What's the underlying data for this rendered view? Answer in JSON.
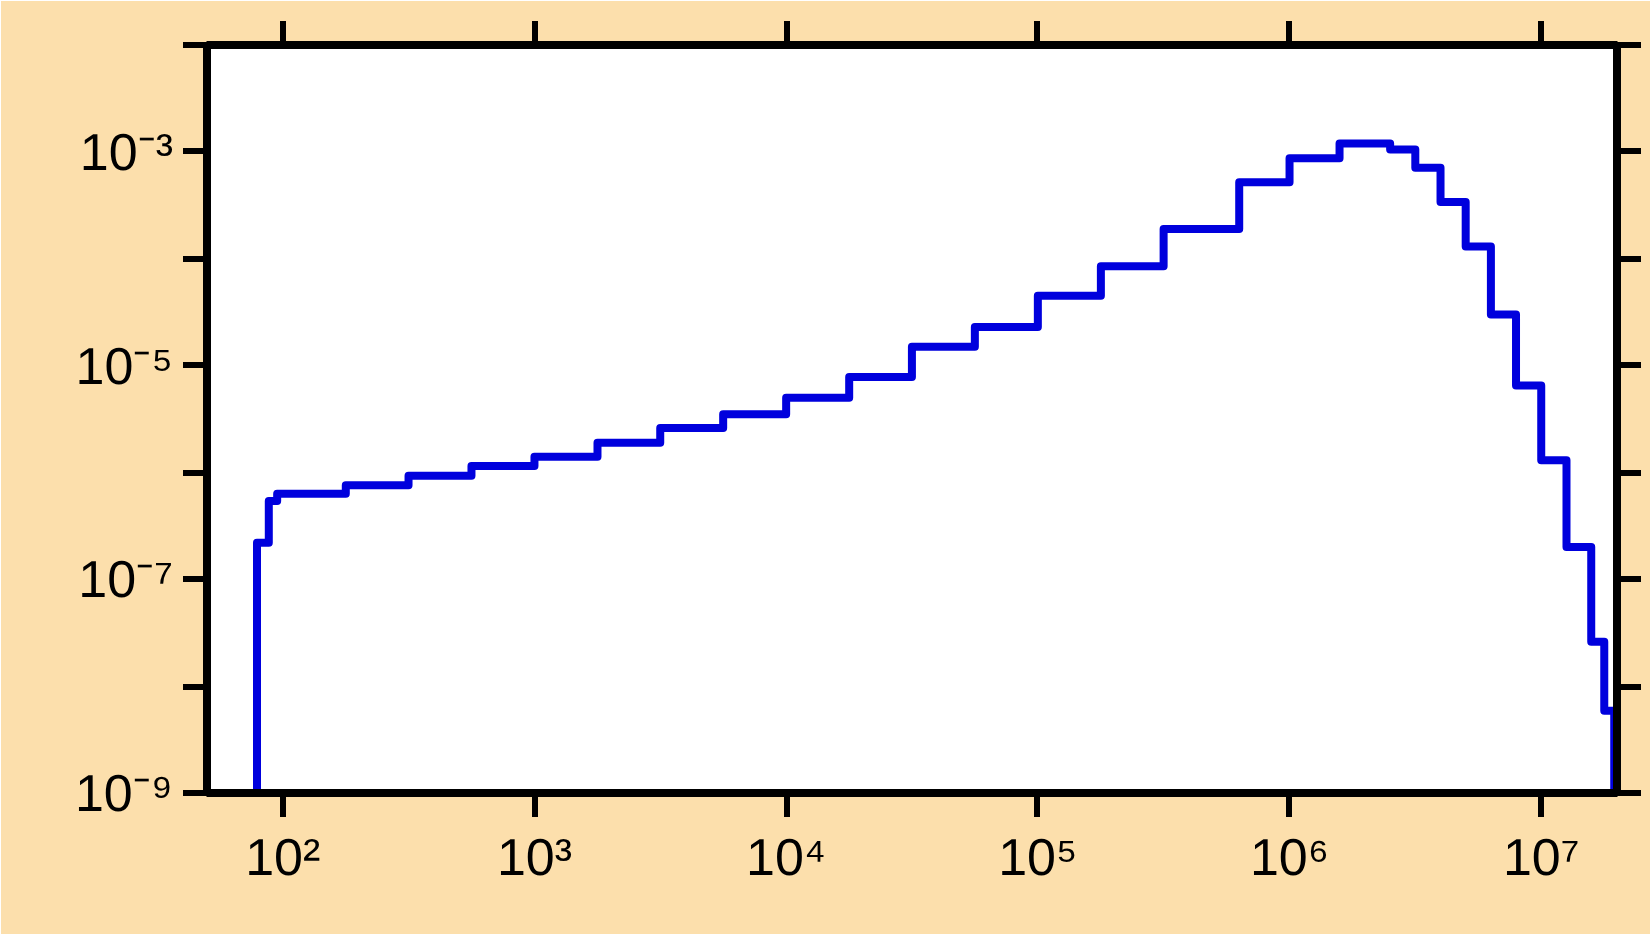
{
  "chart_data": {
    "type": "step",
    "x": [
      79,
      79,
      88,
      95,
      178,
      316,
      562,
      1000,
      1780,
      3160,
      5620,
      10000,
      17800,
      31600,
      56200,
      100000,
      178000,
      316000,
      631000,
      1000000,
      1580000,
      2000000,
      2510000,
      3160000,
      3980000,
      5010000,
      6310000,
      7940000,
      10000000,
      12600000,
      15800000,
      17800000,
      19500000
    ],
    "series": [
      {
        "color": "#0000dd",
        "values": [
          1e-09,
          2.2e-07,
          5.4e-07,
          6.3e-07,
          7.6e-07,
          9.3e-07,
          1.15e-06,
          1.4e-06,
          1.9e-06,
          2.6e-06,
          3.5e-06,
          5e-06,
          7.8e-06,
          1.5e-05,
          2.3e-05,
          4.5e-05,
          8.5e-05,
          0.00019,
          0.00052,
          0.00087,
          0.0012,
          0.0012,
          0.00105,
          0.00071,
          0.00034,
          0.00013,
          3e-05,
          6.5e-06,
          1.3e-06,
          2e-07,
          2.6e-08,
          5.9e-09,
          1e-09
        ]
      }
    ],
    "log": "xy",
    "xlim": [
      50,
      20000000
    ],
    "ylim": [
      1e-09,
      0.01
    ],
    "xticks": [
      {
        "value": 100,
        "label": "10²"
      },
      {
        "value": 1000,
        "label": "10³"
      },
      {
        "value": 10000,
        "label": "10⁴"
      },
      {
        "value": 100000,
        "label": "10⁵"
      },
      {
        "value": 1000000,
        "label": "10⁶"
      },
      {
        "value": 10000000,
        "label": "10⁷"
      }
    ],
    "yticks": [
      {
        "value": 1e-09,
        "label": "10⁻⁹"
      },
      {
        "value": 1e-08,
        "label": null
      },
      {
        "value": 1e-07,
        "label": "10⁻⁷"
      },
      {
        "value": 1e-06,
        "label": null
      },
      {
        "value": 1e-05,
        "label": "10⁻⁵"
      },
      {
        "value": 0.0001,
        "label": null
      },
      {
        "value": 0.001,
        "label": "10⁻³"
      },
      {
        "value": 0.01,
        "label": null
      }
    ],
    "grid": false,
    "line_style": "solid"
  }
}
